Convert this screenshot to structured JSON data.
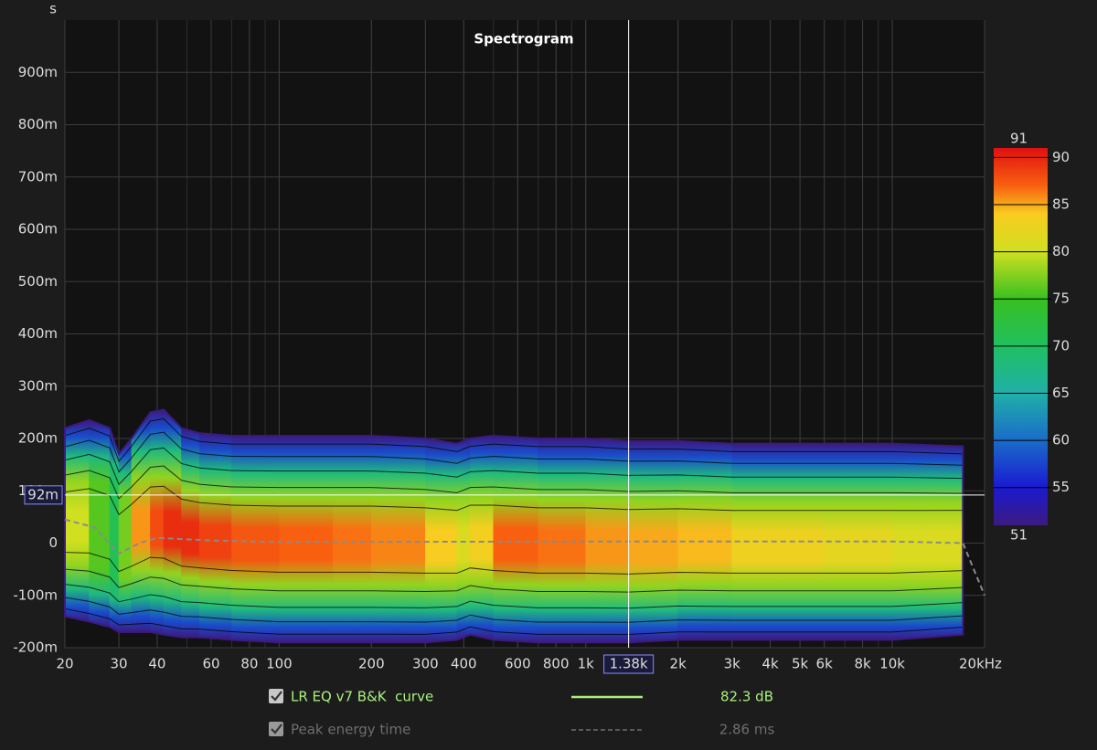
{
  "chart_data": {
    "type": "spectrogram",
    "title": "Spectrogram",
    "y_label": "s",
    "log_x": true,
    "grid": true,
    "xlim": [
      20,
      20000
    ],
    "xticks": [
      20,
      30,
      40,
      60,
      80,
      100,
      200,
      300,
      400,
      600,
      800,
      {
        "value": 1000,
        "label": "1k"
      },
      {
        "value": 2000,
        "label": "2k"
      },
      {
        "value": 3000,
        "label": "3k"
      },
      {
        "value": 4000,
        "label": "4k"
      },
      {
        "value": 5000,
        "label": "5k"
      },
      {
        "value": 6000,
        "label": "6k"
      },
      {
        "value": 8000,
        "label": "8k"
      },
      {
        "value": 10000,
        "label": "10k"
      },
      {
        "value": 20000,
        "label": "20kHz"
      }
    ],
    "ylim": [
      -0.2,
      1.0
    ],
    "yticks": [
      {
        "value": -0.2,
        "label": "-200m"
      },
      {
        "value": -0.1,
        "label": "-100m"
      },
      0,
      {
        "value": 0.1,
        "label": "100m"
      },
      {
        "value": 0.2,
        "label": "200m"
      },
      {
        "value": 0.3,
        "label": "300m"
      },
      {
        "value": 0.4,
        "label": "400m"
      },
      {
        "value": 0.5,
        "label": "500m"
      },
      {
        "value": 0.6,
        "label": "600m"
      },
      {
        "value": 0.7,
        "label": "700m"
      },
      {
        "value": 0.8,
        "label": "800m"
      },
      {
        "value": 0.9,
        "label": "900m"
      }
    ],
    "zlim": [
      51,
      91
    ],
    "zticks": [
      55,
      60,
      65,
      70,
      75,
      80,
      85,
      90
    ],
    "colorscale": {
      "stops": [
        51,
        55,
        60,
        65,
        70,
        75,
        80,
        84,
        87,
        91
      ],
      "colors": [
        "#3c1a80",
        "#1a1ad0",
        "#1a6cc8",
        "#20b0a8",
        "#20c060",
        "#38c020",
        "#d0e020",
        "#f8cc20",
        "#f86010",
        "#e01010"
      ]
    },
    "cursor": {
      "x": {
        "value": 1380,
        "label": "1.38k"
      },
      "y": {
        "value": 0.092,
        "label": "92m"
      }
    },
    "series": [
      {
        "name": "LR EQ v7 B&K  curve",
        "color": "#a8f07e",
        "value_label": "82.3 dB",
        "x": [
          20,
          24,
          28,
          30,
          33,
          38,
          42,
          48,
          55,
          70,
          100,
          150,
          200,
          300,
          380,
          420,
          500,
          700,
          1000,
          1380,
          2000,
          3000,
          6000,
          10000,
          17000
        ],
        "top": [
          0.22,
          0.235,
          0.22,
          0.17,
          0.2,
          0.25,
          0.255,
          0.22,
          0.21,
          0.205,
          0.205,
          0.205,
          0.205,
          0.2,
          0.19,
          0.2,
          0.205,
          0.2,
          0.2,
          0.195,
          0.195,
          0.19,
          0.19,
          0.19,
          0.185
        ],
        "bottom": [
          -0.14,
          -0.15,
          -0.16,
          -0.17,
          -0.17,
          -0.17,
          -0.175,
          -0.18,
          -0.18,
          -0.185,
          -0.19,
          -0.19,
          -0.19,
          -0.19,
          -0.185,
          -0.175,
          -0.185,
          -0.19,
          -0.19,
          -0.19,
          -0.185,
          -0.185,
          -0.185,
          -0.185,
          -0.175
        ],
        "level": [
          80,
          80,
          72,
          70,
          84,
          87,
          89,
          90,
          89,
          88,
          87,
          87,
          86,
          86,
          82,
          80,
          87,
          87,
          86,
          85,
          85,
          84,
          82,
          82,
          80
        ]
      },
      {
        "name": "Peak energy time",
        "color": "#8a8a8a",
        "value_label": "2.86 ms",
        "x": [
          20,
          25,
          30,
          35,
          40,
          60,
          100,
          1000,
          10000,
          17000,
          20000
        ],
        "values": [
          0.045,
          0.03,
          -0.02,
          0.0,
          0.01,
          0.005,
          0.002,
          0.003,
          0.003,
          0.0,
          -0.1
        ]
      }
    ]
  }
}
